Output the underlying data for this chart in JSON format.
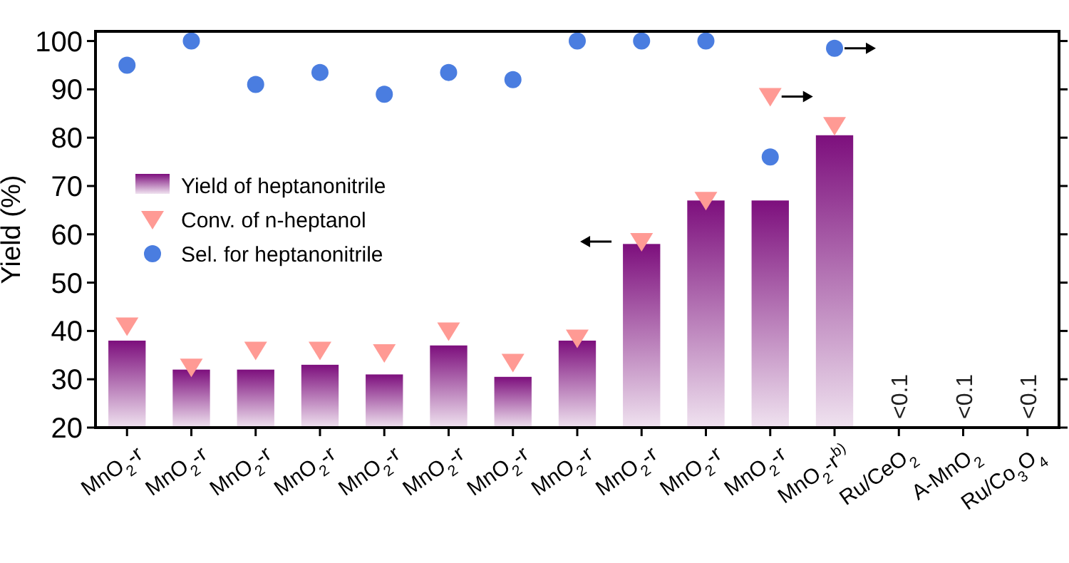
{
  "chart_data": {
    "type": "bar",
    "ylabel": "Yield (%)",
    "categories": [
      "MnO$_{2}$-r",
      "MnO$_{2}$-r",
      "MnO$_{2}$-r",
      "MnO$_{2}$-r",
      "MnO$_{2}$-r",
      "MnO$_{2}$-r",
      "MnO$_{2}$-r",
      "MnO$_{2}$-r",
      "MnO$_{2}$-r",
      "MnO$_{2}$-r",
      "MnO$_{2}$-r",
      "MnO$_{2}$-r$^{b)}$",
      "Ru/CeO$_{2}$",
      "A-MnO$_{2}$",
      "Ru/Co$_{3}$O$_{4}$"
    ],
    "series": [
      {
        "name": "Yield of heptanonitrile",
        "color": "#7d0f7d",
        "values": [
          38,
          32,
          32,
          33,
          31,
          37,
          30.5,
          38,
          58,
          67,
          67,
          80.5,
          null,
          null,
          null
        ],
        "value_labels": [
          null,
          null,
          null,
          null,
          null,
          null,
          null,
          null,
          null,
          null,
          null,
          null,
          "<0.1",
          "<0.1",
          "<0.1"
        ]
      },
      {
        "name": "Conv. of n-heptanol",
        "type": "scatter",
        "marker": "triangle",
        "color": "#ff9a94",
        "values": [
          41,
          32.5,
          36,
          36,
          35.5,
          40,
          33.5,
          38.5,
          58.5,
          67,
          88.5,
          82.5,
          null,
          null,
          null
        ]
      },
      {
        "name": "Sel. for heptanonitrile",
        "type": "scatter",
        "marker": "circle",
        "color": "#4a7de0",
        "values": [
          95,
          100,
          91,
          93.5,
          89,
          93.5,
          92,
          100,
          100,
          100,
          76,
          98.5,
          null,
          null,
          null
        ]
      }
    ],
    "ylim": [
      20,
      102
    ],
    "yticks": [
      20,
      30,
      40,
      50,
      60,
      70,
      80,
      90,
      100
    ],
    "legend": "left",
    "grid": false
  }
}
